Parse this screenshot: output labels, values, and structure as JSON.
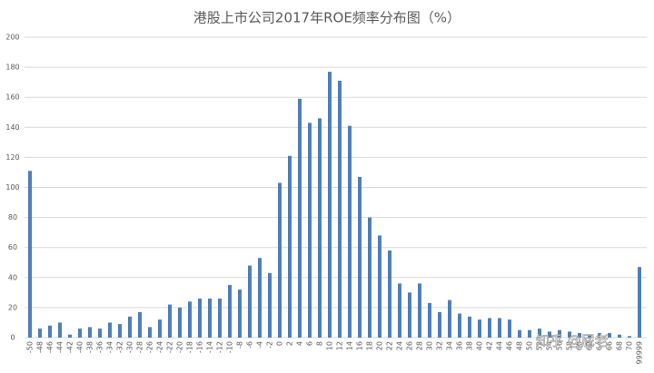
{
  "chart_data": {
    "type": "bar",
    "title": "港股上市公司2017年ROE频率分布图（%）",
    "watermark": "知乎 @屁老",
    "categories": [
      -50,
      -48,
      -46,
      -44,
      -42,
      -40,
      -38,
      -36,
      -34,
      -32,
      -30,
      -28,
      -26,
      -24,
      -22,
      -20,
      -18,
      -16,
      -14,
      -12,
      -10,
      -8,
      -6,
      -4,
      -2,
      0,
      2,
      4,
      6,
      8,
      10,
      12,
      14,
      16,
      18,
      20,
      22,
      24,
      26,
      28,
      30,
      32,
      34,
      36,
      38,
      40,
      42,
      44,
      46,
      48,
      50,
      52,
      54,
      56,
      58,
      60,
      62,
      64,
      66,
      68,
      70,
      99999
    ],
    "values": [
      111,
      6,
      8,
      10,
      2,
      6,
      7,
      6,
      10,
      9,
      14,
      17,
      7,
      12,
      22,
      20,
      24,
      26,
      26,
      26,
      35,
      32,
      48,
      53,
      43,
      103,
      121,
      159,
      143,
      146,
      177,
      171,
      141,
      107,
      80,
      68,
      58,
      36,
      30,
      36,
      23,
      17,
      25,
      16,
      14,
      12,
      13,
      13,
      12,
      5,
      5,
      6,
      4,
      5,
      4,
      3,
      2,
      3,
      3,
      2,
      1,
      47
    ],
    "color": "#4f7fb8",
    "ylim": [
      0,
      200
    ],
    "yticks": [
      0,
      20,
      40,
      60,
      80,
      100,
      120,
      140,
      160,
      180,
      200
    ],
    "grid": true
  }
}
